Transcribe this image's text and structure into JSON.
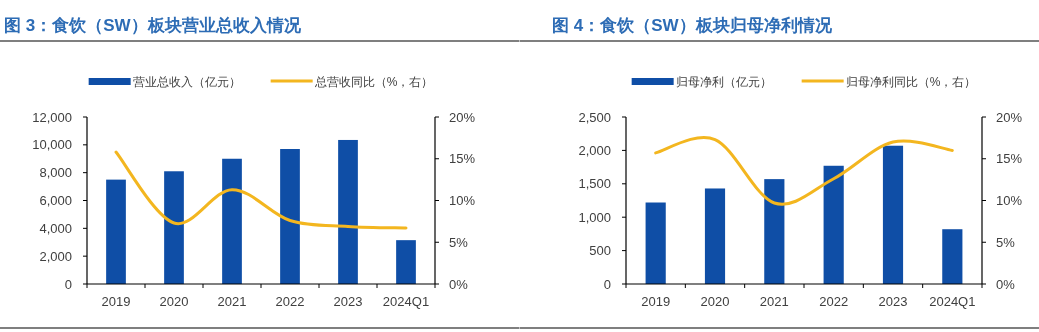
{
  "chart_data": [
    {
      "type": "bar",
      "title": "图 3：食饮（SW）板块营业总收入情况",
      "categories": [
        "2019",
        "2020",
        "2021",
        "2022",
        "2023",
        "2024Q1"
      ],
      "series": [
        {
          "name": "营业总收入（亿元）",
          "color": "#0f4ea6",
          "values": [
            7500,
            8100,
            9000,
            9700,
            10350,
            3150
          ]
        },
        {
          "name": "总营收同比（%，右）",
          "type": "line",
          "axis": "y2",
          "color": "#f3b61f",
          "values": [
            15.8,
            7.3,
            11.3,
            7.6,
            6.9,
            6.7
          ]
        }
      ],
      "ylim": [
        0,
        12000
      ],
      "yticks": [
        0,
        {
          "value": 2000,
          "label": "2,000"
        },
        {
          "value": 4000,
          "label": "4,000"
        },
        {
          "value": 6000,
          "label": "6,000"
        },
        {
          "value": 8000,
          "label": "8,000"
        },
        {
          "value": 10000,
          "label": "10,000"
        },
        {
          "value": 12000,
          "label": "12,000"
        }
      ],
      "y2lim": [
        0,
        20
      ],
      "y2ticks": [
        {
          "value": 0,
          "label": "0%"
        },
        {
          "value": 5,
          "label": "5%"
        },
        {
          "value": 10,
          "label": "10%"
        },
        {
          "value": 15,
          "label": "15%"
        },
        {
          "value": 20,
          "label": "20%"
        }
      ],
      "legend": "top",
      "grid": false
    },
    {
      "type": "bar",
      "title": "图 4：食饮（SW）板块归母净利情况",
      "categories": [
        "2019",
        "2020",
        "2021",
        "2022",
        "2023",
        "2024Q1"
      ],
      "series": [
        {
          "name": "归母净利（亿元）",
          "color": "#0f4ea6",
          "values": [
            1220,
            1430,
            1570,
            1770,
            2070,
            820
          ]
        },
        {
          "name": "归母净利同比（%，右）",
          "type": "line",
          "axis": "y2",
          "color": "#f3b61f",
          "values": [
            15.7,
            17.3,
            9.7,
            12.6,
            17.0,
            16.0
          ]
        }
      ],
      "ylim": [
        0,
        2500
      ],
      "yticks": [
        0,
        {
          "value": 500,
          "label": "500"
        },
        {
          "value": 1000,
          "label": "1,000"
        },
        {
          "value": 1500,
          "label": "1,500"
        },
        {
          "value": 2000,
          "label": "2,000"
        },
        {
          "value": 2500,
          "label": "2,500"
        }
      ],
      "y2lim": [
        0,
        20
      ],
      "y2ticks": [
        {
          "value": 0,
          "label": "0%"
        },
        {
          "value": 5,
          "label": "5%"
        },
        {
          "value": 10,
          "label": "10%"
        },
        {
          "value": 15,
          "label": "15%"
        },
        {
          "value": 20,
          "label": "20%"
        }
      ],
      "legend": "top",
      "grid": false
    }
  ]
}
